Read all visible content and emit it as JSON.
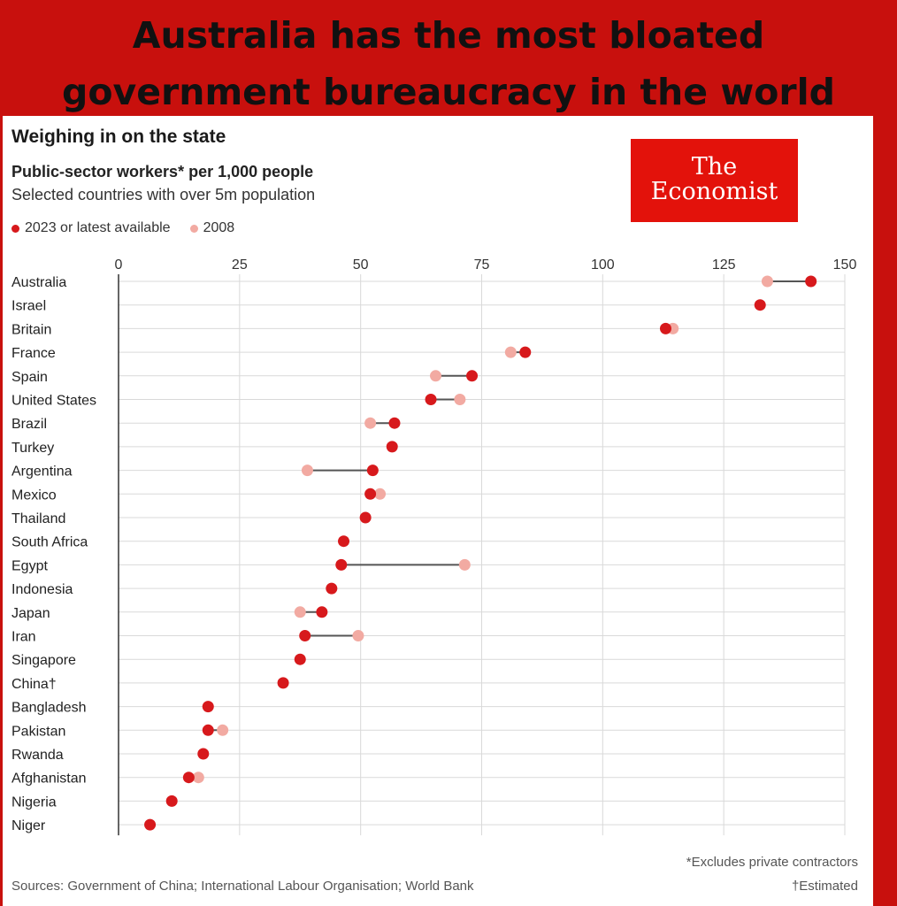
{
  "headline": {
    "line1": "Australia has the most bloated",
    "line2": "government bureaucracy in the world"
  },
  "logo": {
    "line1": "The",
    "line2": "Economist"
  },
  "chart_data": {
    "type": "dot",
    "title": "Weighing in on the state",
    "subtitle": "Public-sector workers* per 1,000 people",
    "subnote": "Selected countries with over 5m population",
    "xlim": [
      0,
      150
    ],
    "xticks": [
      0,
      25,
      50,
      75,
      100,
      125,
      150
    ],
    "grid": true,
    "legend_placement": "top-left",
    "colors": {
      "latest": "#d7191c",
      "y2008": "#f2aaa2",
      "connector": "#555555",
      "grid": "#d9d9d9",
      "axis": "#333333"
    },
    "series": [
      {
        "name": "2023 or latest available",
        "key": "latest"
      },
      {
        "name": "2008",
        "key": "y2008"
      }
    ],
    "categories": [
      "Australia",
      "Israel",
      "Britain",
      "France",
      "Spain",
      "United States",
      "Brazil",
      "Turkey",
      "Argentina",
      "Mexico",
      "Thailand",
      "South Africa",
      "Egypt",
      "Indonesia",
      "Japan",
      "Iran",
      "Singapore",
      "China†",
      "Bangladesh",
      "Pakistan",
      "Rwanda",
      "Afghanistan",
      "Nigeria",
      "Niger"
    ],
    "latest": [
      143,
      132.5,
      113,
      84,
      73,
      64.5,
      57,
      56.5,
      52.5,
      52,
      51,
      46.5,
      46,
      44,
      42,
      38.5,
      37.5,
      34,
      18.5,
      18.5,
      17.5,
      14.5,
      11,
      6.5
    ],
    "y2008": [
      134,
      null,
      114.5,
      81,
      65.5,
      70.5,
      52,
      null,
      39,
      54,
      null,
      null,
      71.5,
      null,
      37.5,
      49.5,
      null,
      null,
      null,
      21.5,
      null,
      16.5,
      null,
      null
    ]
  },
  "footnotes": {
    "excludes": "*Excludes private contractors",
    "estimated": "†Estimated",
    "sources": "Sources: Government of China; International Labour Organisation; World Bank"
  }
}
